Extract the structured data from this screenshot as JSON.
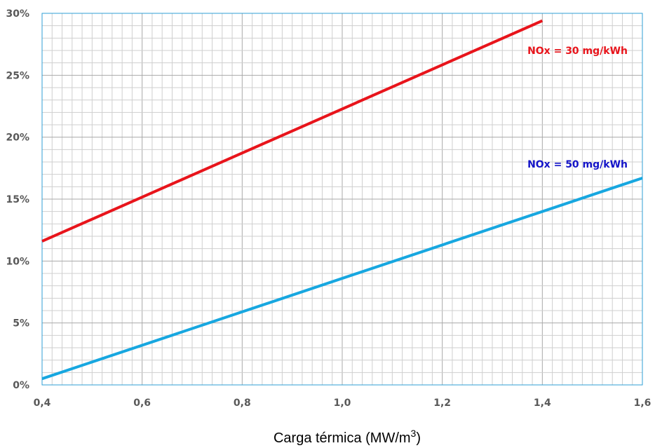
{
  "chart_data": {
    "type": "line",
    "title": "",
    "xlabel": "Carga térmica  (MW/m",
    "xlabel_superscript": "3",
    "xlabel_close": ")",
    "ylabel": "",
    "xlim": [
      0.4,
      1.6
    ],
    "ylim": [
      0,
      30
    ],
    "x_ticks": [
      0.4,
      0.6,
      0.8,
      1.0,
      1.2,
      1.4,
      1.6
    ],
    "x_tick_labels": [
      "0,4",
      "0,6",
      "0,8",
      "1,0",
      "1,2",
      "1,4",
      "1,6"
    ],
    "y_ticks": [
      0,
      5,
      10,
      15,
      20,
      25,
      30
    ],
    "y_tick_labels": [
      "0%",
      "5%",
      "10%",
      "15%",
      "20%",
      "25%",
      "30%"
    ],
    "grid": true,
    "series": [
      {
        "name": "NOx = 30 mg/kWh",
        "color": "#e8141b",
        "label_color": "#e8141b",
        "x": [
          0.4,
          1.4
        ],
        "y": [
          11.6,
          29.4
        ]
      },
      {
        "name": "NOx = 50 mg/kWh",
        "color": "#17a7e0",
        "label_color": "#1414c8",
        "x": [
          0.4,
          1.6
        ],
        "y": [
          0.5,
          16.7
        ]
      }
    ]
  }
}
